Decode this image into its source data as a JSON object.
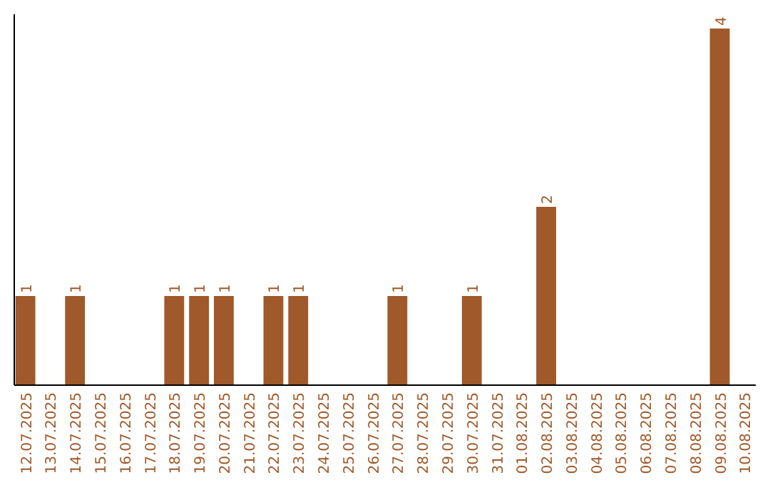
{
  "chart_data": {
    "type": "bar",
    "categories": [
      "12.07.2025",
      "13.07.2025",
      "14.07.2025",
      "15.07.2025",
      "16.07.2025",
      "17.07.2025",
      "18.07.2025",
      "19.07.2025",
      "20.07.2025",
      "21.07.2025",
      "22.07.2025",
      "23.07.2025",
      "24.07.2025",
      "25.07.2025",
      "26.07.2025",
      "27.07.2025",
      "28.07.2025",
      "29.07.2025",
      "30.07.2025",
      "31.07.2025",
      "01.08.2025",
      "02.08.2025",
      "03.08.2025",
      "04.08.2025",
      "05.08.2025",
      "06.08.2025",
      "07.08.2025",
      "08.08.2025",
      "09.08.2025",
      "10.08.2025"
    ],
    "values": [
      1,
      0,
      1,
      0,
      0,
      0,
      1,
      1,
      1,
      0,
      1,
      1,
      0,
      0,
      0,
      1,
      0,
      0,
      1,
      0,
      0,
      2,
      0,
      0,
      0,
      0,
      0,
      0,
      4,
      0
    ],
    "value_labels": [
      "1",
      null,
      "1",
      null,
      null,
      null,
      "1",
      "1",
      "1",
      null,
      "1",
      "1",
      null,
      null,
      null,
      "1",
      null,
      null,
      "1",
      null,
      null,
      "2",
      null,
      null,
      null,
      null,
      null,
      null,
      "4",
      null
    ],
    "color": "#a0592a",
    "ylim": [
      0,
      4.16
    ],
    "tick_labels": "x"
  }
}
